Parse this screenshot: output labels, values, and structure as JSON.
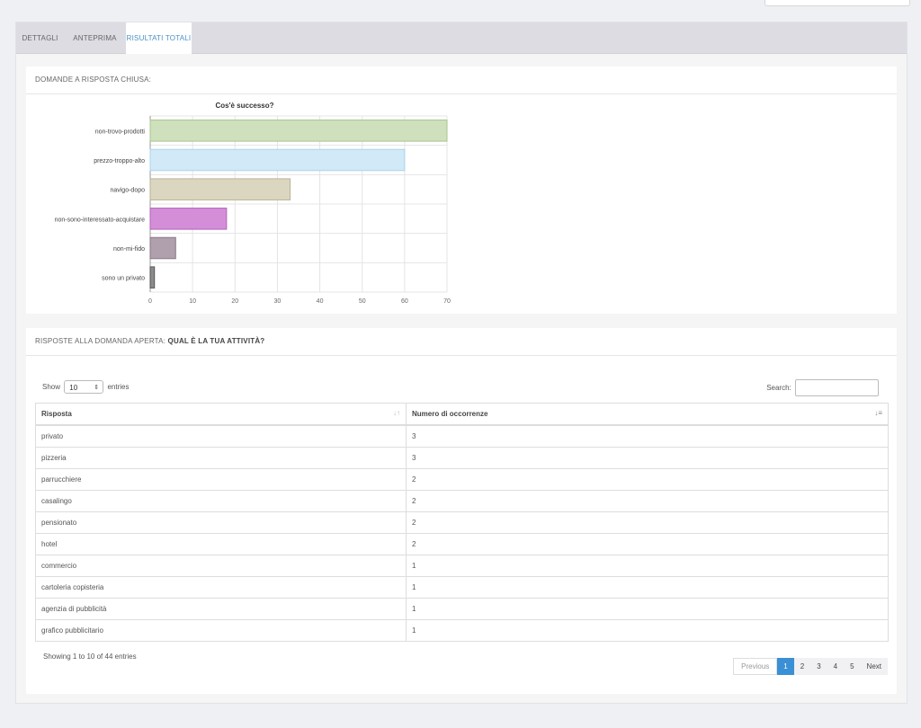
{
  "tabs": [
    {
      "label": "DETTAGLI"
    },
    {
      "label": "ANTEPRIMA"
    },
    {
      "label": "RISULTATI TOTALI"
    }
  ],
  "closed": {
    "header": "DOMANDE A RISPOSTA CHIUSA:"
  },
  "chart_data": {
    "type": "bar",
    "orientation": "horizontal",
    "title": "Cos'è successo?",
    "categories": [
      "non-trovo-prodotti",
      "prezzo-troppo-alto",
      "navigo-dopo",
      "non-sono-interessato-acquistare",
      "non-mi-fido",
      "sono un privato"
    ],
    "values": [
      70,
      60,
      33,
      18,
      6,
      1
    ],
    "colors": [
      "#cfe0bd",
      "#d2e9f7",
      "#dbd6bf",
      "#d48ed8",
      "#b09fad",
      "#8c8c8c"
    ],
    "borders": [
      "#a9c48d",
      "#a9d3ef",
      "#b9b395",
      "#b263b8",
      "#8a7787",
      "#555555"
    ],
    "xlim": [
      0,
      70
    ],
    "xticks": [
      0,
      10,
      20,
      30,
      40,
      50,
      60,
      70
    ],
    "grid": true
  },
  "open": {
    "header_prefix": "RISPOSTE ALLA DOMANDA APERTA:",
    "header_question": "QUAL È LA TUA ATTIVITÀ?",
    "show_label": "Show",
    "entries_label": "entries",
    "page_size": "10",
    "search_label": "Search:",
    "columns": [
      "Risposta",
      "Numero di occorrenze"
    ],
    "rows": [
      {
        "risposta": "privato",
        "numero": "3"
      },
      {
        "risposta": "pizzeria",
        "numero": "3"
      },
      {
        "risposta": "parrucchiere",
        "numero": "2"
      },
      {
        "risposta": "casalingo",
        "numero": "2"
      },
      {
        "risposta": "pensionato",
        "numero": "2"
      },
      {
        "risposta": "hotel",
        "numero": "2"
      },
      {
        "risposta": "commercio",
        "numero": "1"
      },
      {
        "risposta": "cartoleria copisteria",
        "numero": "1"
      },
      {
        "risposta": "agenzia di pubblicità",
        "numero": "1"
      },
      {
        "risposta": "grafico pubblicitario",
        "numero": "1"
      }
    ],
    "info": "Showing 1 to 10 of 44 entries",
    "pagination": {
      "previous": "Previous",
      "pages": [
        "1",
        "2",
        "3",
        "4",
        "5"
      ],
      "current": "1",
      "next": "Next"
    }
  }
}
